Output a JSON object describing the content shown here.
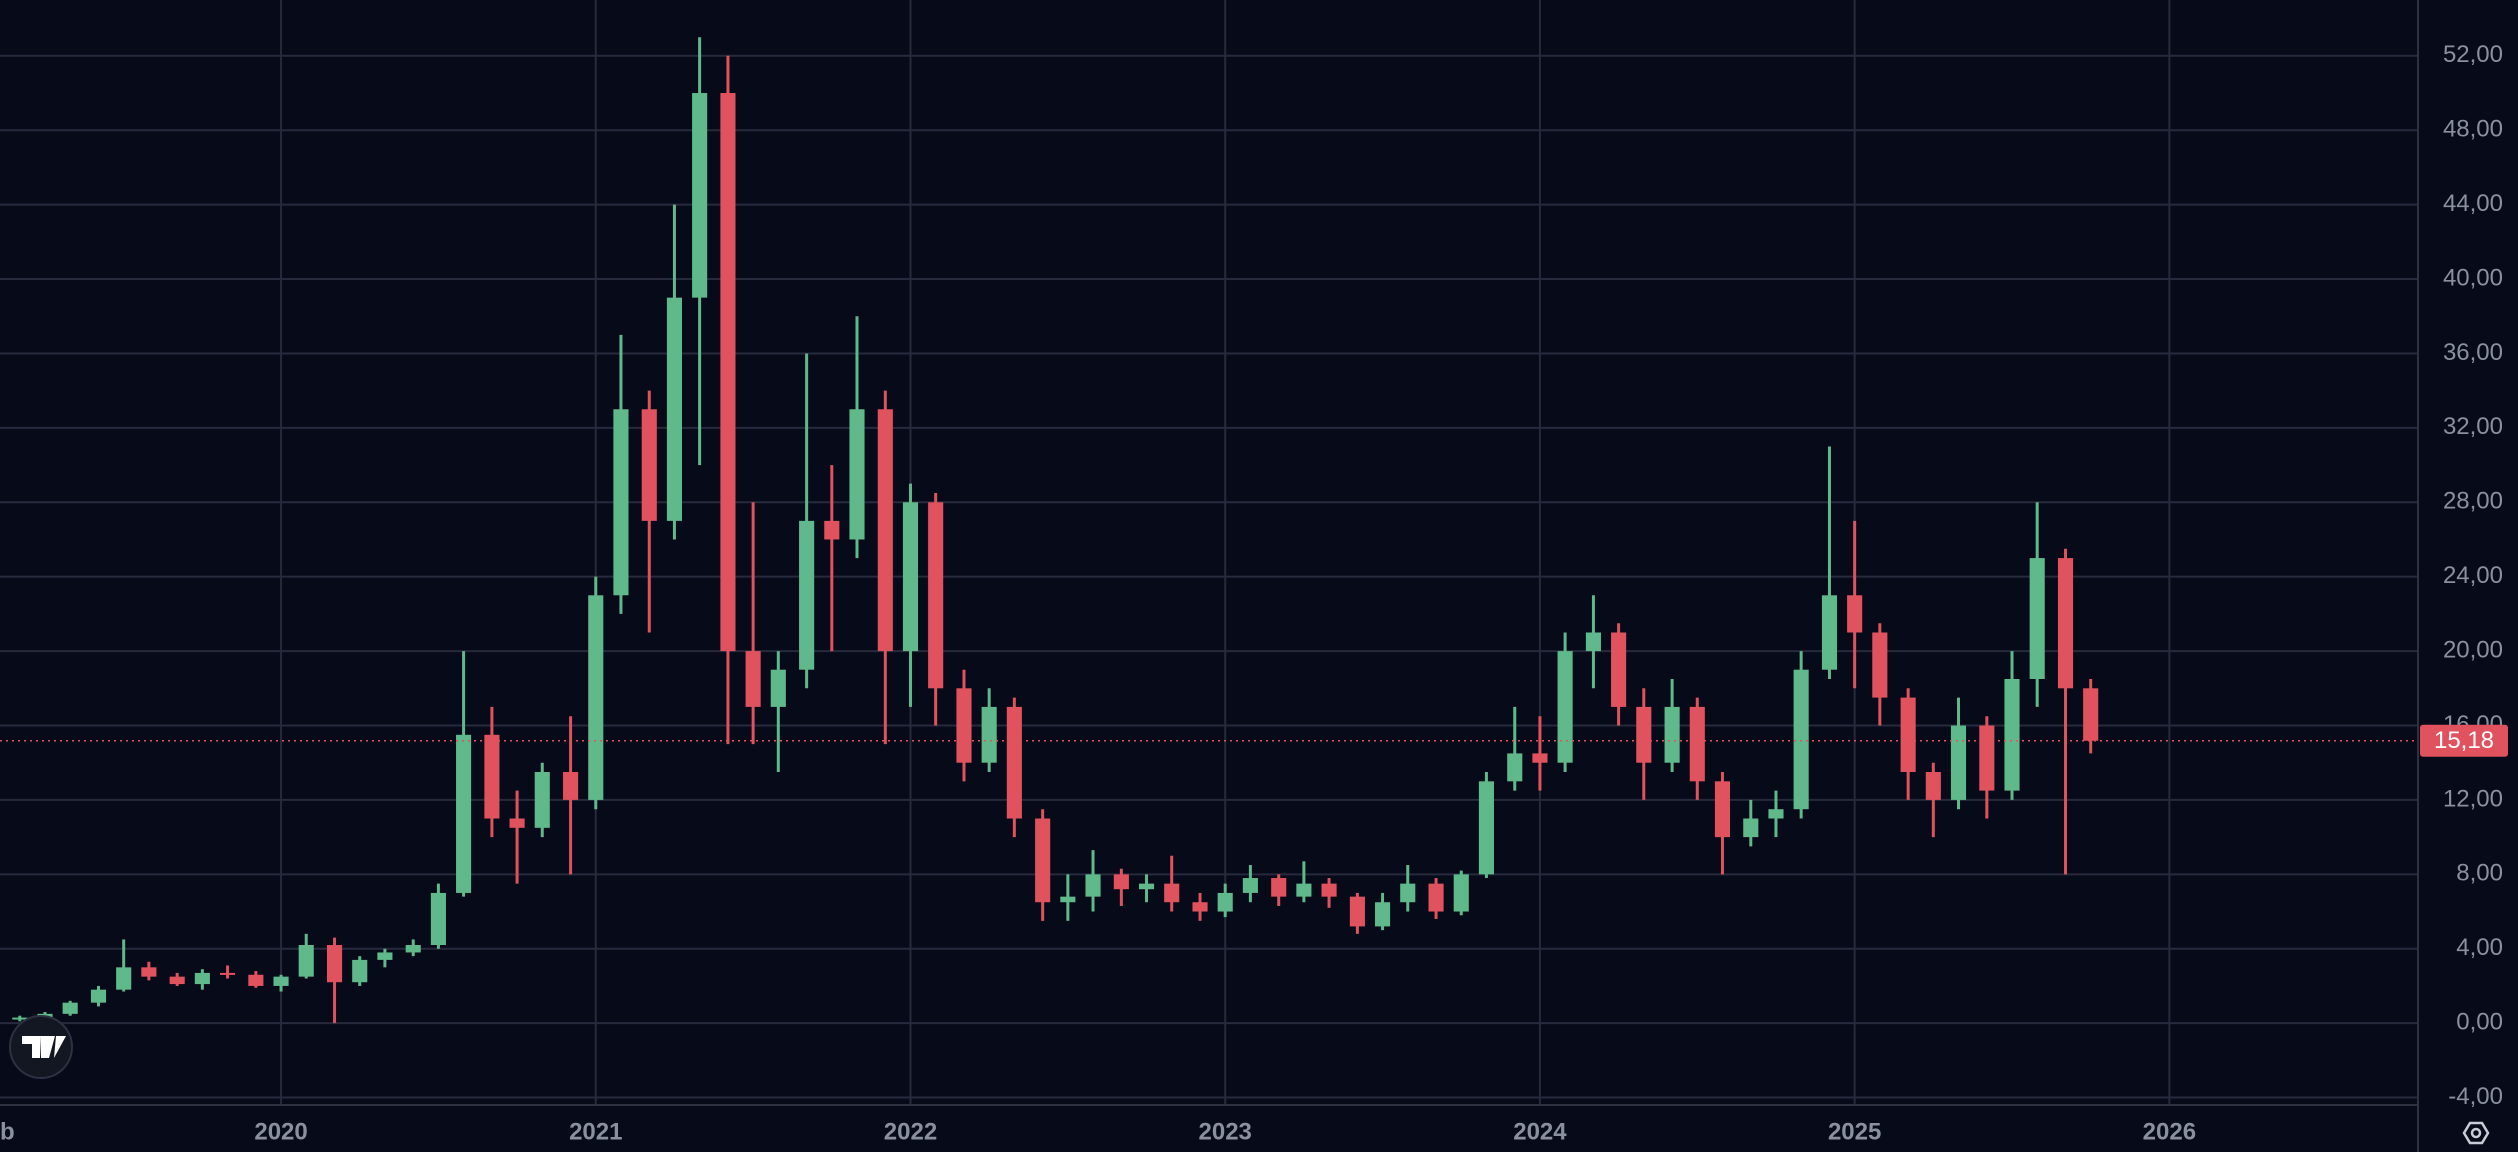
{
  "chart_data": {
    "type": "candlestick",
    "x": [
      2019.17,
      2019.25,
      2019.33,
      2019.42,
      2019.5,
      2019.58,
      2019.67,
      2019.75,
      2019.83,
      2019.92,
      2020.0,
      2020.08,
      2020.17,
      2020.25,
      2020.33,
      2020.42,
      2020.5,
      2020.58,
      2020.67,
      2020.75,
      2020.83,
      2020.92,
      2021.0,
      2021.08,
      2021.17,
      2021.25,
      2021.33,
      2021.42,
      2021.5,
      2021.58,
      2021.67,
      2021.75,
      2021.83,
      2021.92,
      2022.0,
      2022.08,
      2022.17,
      2022.25,
      2022.33,
      2022.42,
      2022.5,
      2022.58,
      2022.67,
      2022.75,
      2022.83,
      2022.92,
      2023.0,
      2023.08,
      2023.17,
      2023.25,
      2023.33,
      2023.42,
      2023.5,
      2023.58,
      2023.67,
      2023.75,
      2023.83,
      2023.92,
      2024.0,
      2024.08,
      2024.17,
      2024.25,
      2024.33,
      2024.42,
      2024.5,
      2024.58,
      2024.67,
      2024.75,
      2024.83,
      2024.92,
      2025.0,
      2025.08,
      2025.17,
      2025.25,
      2025.33,
      2025.42,
      2025.5,
      2025.58,
      2025.67,
      2025.75
    ],
    "open": [
      0.2,
      0.3,
      0.5,
      1.1,
      1.8,
      3.0,
      2.5,
      2.1,
      2.7,
      2.6,
      2.0,
      2.5,
      4.2,
      2.2,
      3.4,
      3.8,
      4.2,
      7.0,
      15.5,
      11.0,
      10.5,
      13.5,
      12.0,
      23.0,
      33.0,
      27.0,
      39.0,
      50.0,
      20.0,
      17.0,
      19.0,
      27.0,
      26.0,
      33.0,
      20.0,
      28.0,
      18.0,
      14.0,
      17.0,
      11.0,
      6.5,
      6.8,
      8.0,
      7.2,
      7.5,
      6.5,
      6.0,
      7.0,
      7.8,
      6.8,
      7.5,
      6.8,
      5.2,
      6.5,
      7.5,
      6.0,
      8.0,
      13.0,
      14.5,
      14.0,
      20.0,
      21.0,
      17.0,
      14.0,
      17.0,
      13.0,
      10.0,
      11.0,
      11.5,
      19.0,
      23.0,
      21.0,
      17.5,
      13.5,
      12.0,
      16.0,
      12.5,
      18.5,
      25.0,
      18.0
    ],
    "high": [
      0.4,
      0.6,
      1.2,
      2.0,
      4.5,
      3.3,
      2.7,
      2.9,
      3.1,
      2.8,
      2.6,
      4.8,
      4.6,
      3.6,
      4.0,
      4.5,
      7.5,
      20.0,
      17.0,
      12.5,
      14.0,
      16.5,
      24.0,
      37.0,
      34.0,
      44.0,
      53.0,
      52.0,
      28.0,
      20.0,
      36.0,
      30.0,
      38.0,
      34.0,
      29.0,
      28.5,
      19.0,
      18.0,
      17.5,
      11.5,
      8.0,
      9.3,
      8.3,
      8.0,
      9.0,
      7.0,
      7.5,
      8.5,
      8.0,
      8.7,
      7.8,
      7.0,
      7.0,
      8.5,
      7.8,
      8.2,
      13.5,
      17.0,
      16.5,
      21.0,
      23.0,
      21.5,
      18.0,
      18.5,
      17.5,
      13.5,
      12.0,
      12.5,
      20.0,
      31.0,
      27.0,
      21.5,
      18.0,
      14.0,
      17.5,
      16.5,
      20.0,
      28.0,
      25.5,
      18.5
    ],
    "low": [
      0.1,
      0.2,
      0.4,
      0.9,
      1.7,
      2.3,
      2.0,
      1.8,
      2.4,
      1.9,
      1.7,
      2.4,
      0.0,
      2.0,
      3.0,
      3.6,
      4.0,
      6.8,
      10.0,
      7.5,
      10.0,
      8.0,
      11.5,
      22.0,
      21.0,
      26.0,
      30.0,
      15.0,
      15.0,
      13.5,
      18.0,
      20.0,
      25.0,
      15.0,
      17.0,
      16.0,
      13.0,
      13.5,
      10.0,
      5.5,
      5.5,
      6.0,
      6.3,
      6.5,
      6.0,
      5.5,
      5.7,
      6.5,
      6.3,
      6.5,
      6.2,
      4.8,
      5.0,
      6.0,
      5.6,
      5.8,
      7.8,
      12.5,
      12.5,
      13.5,
      18.0,
      16.0,
      12.0,
      13.5,
      12.0,
      8.0,
      9.5,
      10.0,
      11.0,
      18.5,
      18.0,
      16.0,
      12.0,
      10.0,
      11.5,
      11.0,
      12.0,
      17.0,
      8.0,
      14.5
    ],
    "close": [
      0.3,
      0.5,
      1.1,
      1.8,
      3.0,
      2.5,
      2.1,
      2.7,
      2.6,
      2.0,
      2.5,
      4.2,
      2.2,
      3.4,
      3.8,
      4.2,
      7.0,
      15.5,
      11.0,
      10.5,
      13.5,
      12.0,
      23.0,
      33.0,
      27.0,
      39.0,
      50.0,
      20.0,
      17.0,
      19.0,
      27.0,
      26.0,
      33.0,
      20.0,
      28.0,
      18.0,
      14.0,
      17.0,
      11.0,
      6.5,
      6.8,
      8.0,
      7.2,
      7.5,
      6.5,
      6.0,
      7.0,
      7.8,
      6.8,
      7.5,
      6.8,
      5.2,
      6.5,
      7.5,
      6.0,
      8.0,
      13.0,
      14.5,
      14.0,
      20.0,
      21.0,
      17.0,
      14.0,
      17.0,
      13.0,
      10.0,
      11.0,
      11.5,
      19.0,
      23.0,
      21.0,
      17.5,
      13.5,
      12.0,
      16.0,
      12.5,
      18.5,
      25.0,
      18.0,
      15.18
    ],
    "up_color": "#5fb98a",
    "down_color": "#e0525e",
    "last_price": {
      "value": 15.18,
      "label": "15,18"
    },
    "xlim": [
      2019.107,
      2026.79
    ],
    "xticks": [
      2020,
      2021,
      2022,
      2023,
      2024,
      2025,
      2026
    ],
    "x_edge_label": "b",
    "ylim": [
      -4.4,
      55
    ],
    "yticks": [
      {
        "value": -4,
        "label": "-4,00"
      },
      {
        "value": 0,
        "label": "0,00"
      },
      {
        "value": 4,
        "label": "4,00"
      },
      {
        "value": 8,
        "label": "8,00"
      },
      {
        "value": 12,
        "label": "12,00"
      },
      {
        "value": 16,
        "label": "16,00"
      },
      {
        "value": 20,
        "label": "20,00"
      },
      {
        "value": 24,
        "label": "24,00"
      },
      {
        "value": 28,
        "label": "28,00"
      },
      {
        "value": 32,
        "label": "32,00"
      },
      {
        "value": 36,
        "label": "36,00"
      },
      {
        "value": 40,
        "label": "40,00"
      },
      {
        "value": 44,
        "label": "44,00"
      },
      {
        "value": 48,
        "label": "48,00"
      },
      {
        "value": 52,
        "label": "52,00"
      }
    ],
    "grid": true
  }
}
